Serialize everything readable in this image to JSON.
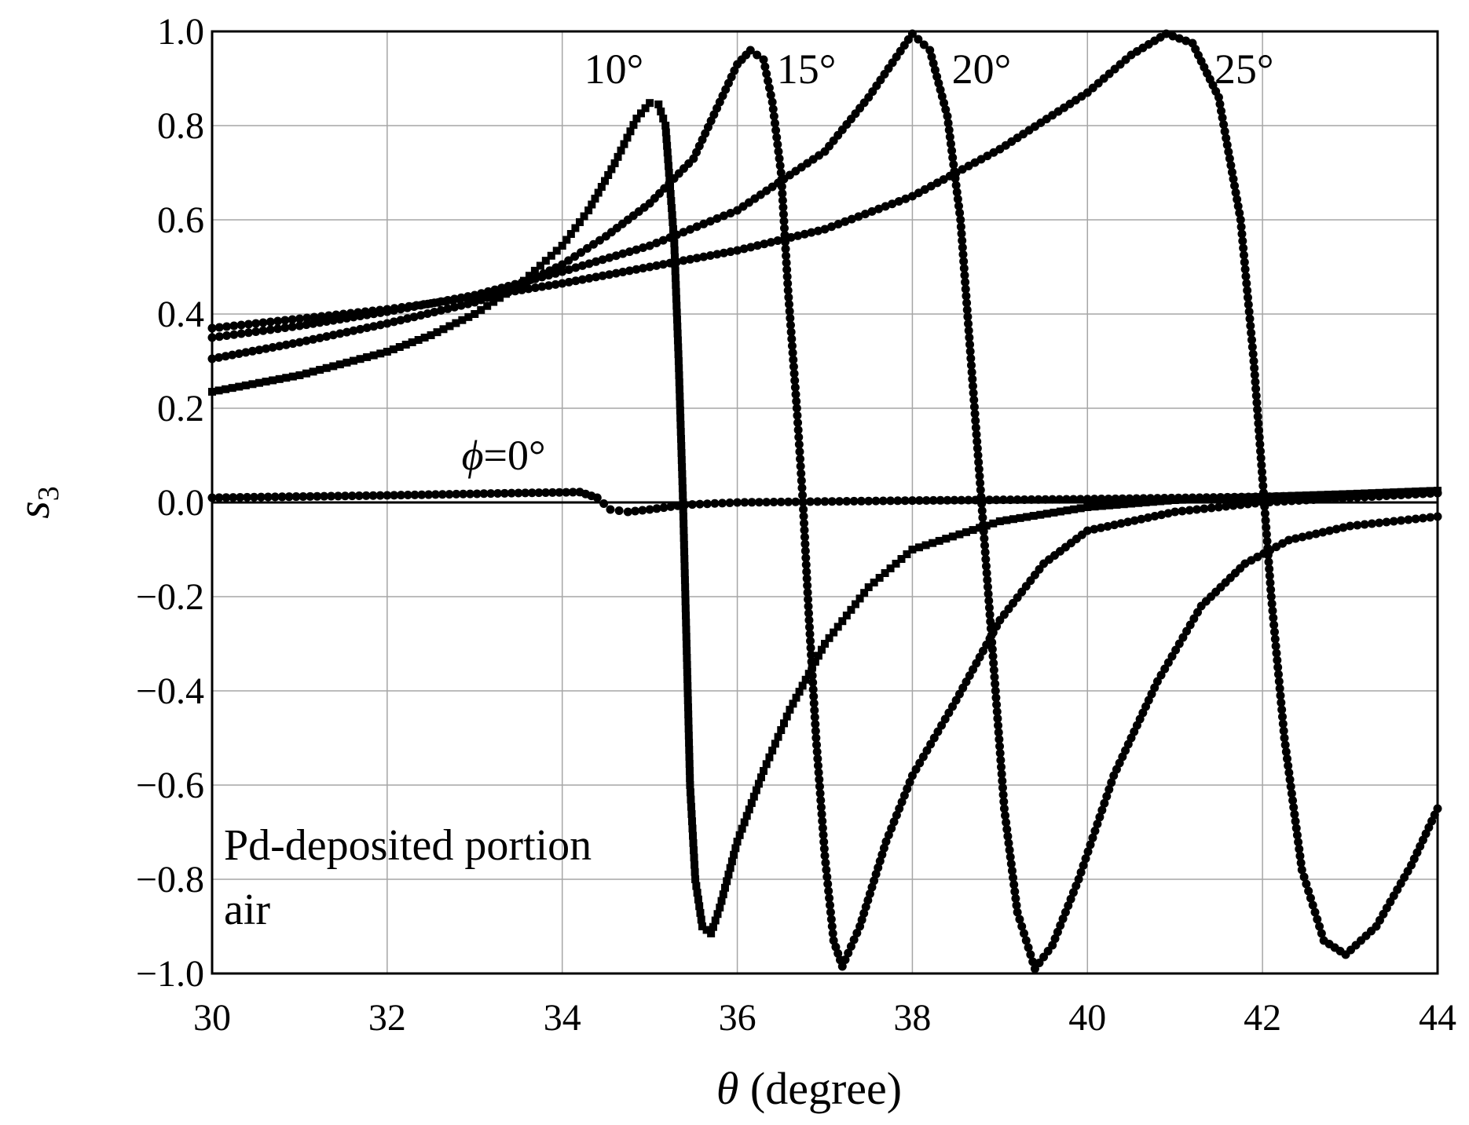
{
  "chart_data": {
    "type": "scatter",
    "title": "",
    "xlabel": {
      "symbol": "θ",
      "text": " (degree)"
    },
    "ylabel": {
      "symbol": "s",
      "subscript": "3"
    },
    "xlim": [
      30,
      44
    ],
    "ylim": [
      -1.0,
      1.0
    ],
    "grid": true,
    "x_ticks": [
      30,
      32,
      34,
      36,
      38,
      40,
      42,
      44
    ],
    "x_tick_labels": [
      "30",
      "32",
      "34",
      "36",
      "38",
      "40",
      "42",
      "44"
    ],
    "y_ticks": [
      1.0,
      0.8,
      0.6,
      0.4,
      0.2,
      0.0,
      -0.2,
      -0.4,
      -0.6,
      -0.8,
      -1.0
    ],
    "y_tick_labels": [
      "1.0",
      "0.8",
      "0.6",
      "0.4",
      "0.2",
      "0.0",
      "−0.2",
      "−0.4",
      "−0.6",
      "−0.8",
      "−1.0"
    ],
    "note_lines": [
      "Pd-deposited portion",
      "air"
    ],
    "series": [
      {
        "name": "ϕ=0°",
        "annotation": {
          "symbol": "ϕ",
          "text": "=0°",
          "x": 32.85,
          "y": 0.1
        },
        "marker": "circle",
        "points": [
          [
            30.0,
            0.01
          ],
          [
            32.0,
            0.015
          ],
          [
            33.5,
            0.02
          ],
          [
            34.2,
            0.022
          ],
          [
            34.4,
            0.01
          ],
          [
            34.55,
            -0.015
          ],
          [
            34.75,
            -0.02
          ],
          [
            35.0,
            -0.015
          ],
          [
            35.4,
            -0.005
          ],
          [
            36.0,
            0.0
          ],
          [
            37.0,
            0.002
          ],
          [
            38.0,
            0.004
          ],
          [
            40.0,
            0.007
          ],
          [
            42.0,
            0.012
          ],
          [
            44.0,
            0.02
          ]
        ]
      },
      {
        "name": "10°",
        "annotation": {
          "text": "10°",
          "x": 34.25,
          "y": 0.92
        },
        "marker": "square",
        "points": [
          [
            30.0,
            0.235
          ],
          [
            31.0,
            0.27
          ],
          [
            32.0,
            0.32
          ],
          [
            32.5,
            0.355
          ],
          [
            33.0,
            0.4
          ],
          [
            33.5,
            0.46
          ],
          [
            34.0,
            0.545
          ],
          [
            34.3,
            0.62
          ],
          [
            34.6,
            0.72
          ],
          [
            34.85,
            0.815
          ],
          [
            35.0,
            0.848
          ],
          [
            35.1,
            0.845
          ],
          [
            35.18,
            0.8
          ],
          [
            35.22,
            0.7
          ],
          [
            35.28,
            0.55
          ],
          [
            35.33,
            0.3
          ],
          [
            35.38,
            0.0
          ],
          [
            35.42,
            -0.3
          ],
          [
            35.46,
            -0.6
          ],
          [
            35.52,
            -0.8
          ],
          [
            35.6,
            -0.9
          ],
          [
            35.7,
            -0.915
          ],
          [
            35.8,
            -0.86
          ],
          [
            36.0,
            -0.72
          ],
          [
            36.3,
            -0.57
          ],
          [
            36.6,
            -0.44
          ],
          [
            37.0,
            -0.3
          ],
          [
            37.5,
            -0.18
          ],
          [
            38.0,
            -0.1
          ],
          [
            39.0,
            -0.04
          ],
          [
            40.0,
            -0.01
          ],
          [
            41.0,
            0.005
          ],
          [
            42.0,
            0.012
          ],
          [
            43.0,
            0.018
          ],
          [
            44.0,
            0.025
          ]
        ]
      },
      {
        "name": "15°",
        "annotation": {
          "text": "15°",
          "x": 36.45,
          "y": 0.92
        },
        "marker": "circle",
        "points": [
          [
            30.0,
            0.305
          ],
          [
            31.0,
            0.34
          ],
          [
            32.0,
            0.38
          ],
          [
            33.0,
            0.425
          ],
          [
            33.5,
            0.46
          ],
          [
            34.0,
            0.505
          ],
          [
            34.5,
            0.565
          ],
          [
            35.0,
            0.635
          ],
          [
            35.5,
            0.73
          ],
          [
            36.0,
            0.93
          ],
          [
            36.15,
            0.96
          ],
          [
            36.3,
            0.94
          ],
          [
            36.4,
            0.85
          ],
          [
            36.5,
            0.7
          ],
          [
            36.58,
            0.45
          ],
          [
            36.68,
            0.2
          ],
          [
            36.75,
            0.0
          ],
          [
            36.82,
            -0.25
          ],
          [
            36.9,
            -0.5
          ],
          [
            37.0,
            -0.75
          ],
          [
            37.1,
            -0.93
          ],
          [
            37.2,
            -0.985
          ],
          [
            37.4,
            -0.9
          ],
          [
            37.7,
            -0.72
          ],
          [
            38.0,
            -0.58
          ],
          [
            38.5,
            -0.42
          ],
          [
            39.0,
            -0.25
          ],
          [
            39.5,
            -0.13
          ],
          [
            40.0,
            -0.06
          ],
          [
            41.0,
            -0.02
          ],
          [
            42.0,
            0.0
          ],
          [
            43.0,
            0.01
          ],
          [
            44.0,
            0.02
          ]
        ]
      },
      {
        "name": "20°",
        "annotation": {
          "text": "20°",
          "x": 38.45,
          "y": 0.92
        },
        "marker": "circle",
        "points": [
          [
            30.0,
            0.35
          ],
          [
            31.0,
            0.375
          ],
          [
            32.0,
            0.405
          ],
          [
            33.0,
            0.44
          ],
          [
            34.0,
            0.49
          ],
          [
            35.0,
            0.545
          ],
          [
            36.0,
            0.62
          ],
          [
            37.0,
            0.745
          ],
          [
            37.5,
            0.86
          ],
          [
            38.0,
            0.995
          ],
          [
            38.2,
            0.96
          ],
          [
            38.4,
            0.82
          ],
          [
            38.55,
            0.6
          ],
          [
            38.65,
            0.35
          ],
          [
            38.75,
            0.1
          ],
          [
            38.85,
            -0.15
          ],
          [
            38.95,
            -0.4
          ],
          [
            39.05,
            -0.65
          ],
          [
            39.2,
            -0.87
          ],
          [
            39.4,
            -0.99
          ],
          [
            39.6,
            -0.94
          ],
          [
            39.9,
            -0.8
          ],
          [
            40.3,
            -0.58
          ],
          [
            40.8,
            -0.38
          ],
          [
            41.3,
            -0.22
          ],
          [
            41.8,
            -0.13
          ],
          [
            42.3,
            -0.08
          ],
          [
            43.0,
            -0.05
          ],
          [
            44.0,
            -0.03
          ]
        ]
      },
      {
        "name": "25°",
        "annotation": {
          "text": "25°",
          "x": 41.45,
          "y": 0.92
        },
        "marker": "circle",
        "points": [
          [
            30.0,
            0.37
          ],
          [
            31.0,
            0.39
          ],
          [
            32.0,
            0.41
          ],
          [
            33.0,
            0.435
          ],
          [
            34.0,
            0.465
          ],
          [
            35.0,
            0.5
          ],
          [
            36.0,
            0.535
          ],
          [
            37.0,
            0.58
          ],
          [
            38.0,
            0.65
          ],
          [
            39.0,
            0.75
          ],
          [
            40.0,
            0.87
          ],
          [
            40.5,
            0.95
          ],
          [
            40.9,
            0.995
          ],
          [
            41.2,
            0.975
          ],
          [
            41.5,
            0.86
          ],
          [
            41.75,
            0.6
          ],
          [
            41.9,
            0.3
          ],
          [
            42.0,
            0.05
          ],
          [
            42.1,
            -0.2
          ],
          [
            42.25,
            -0.5
          ],
          [
            42.45,
            -0.78
          ],
          [
            42.7,
            -0.93
          ],
          [
            42.95,
            -0.96
          ],
          [
            43.3,
            -0.9
          ],
          [
            43.7,
            -0.77
          ],
          [
            44.0,
            -0.65
          ]
        ]
      }
    ]
  }
}
